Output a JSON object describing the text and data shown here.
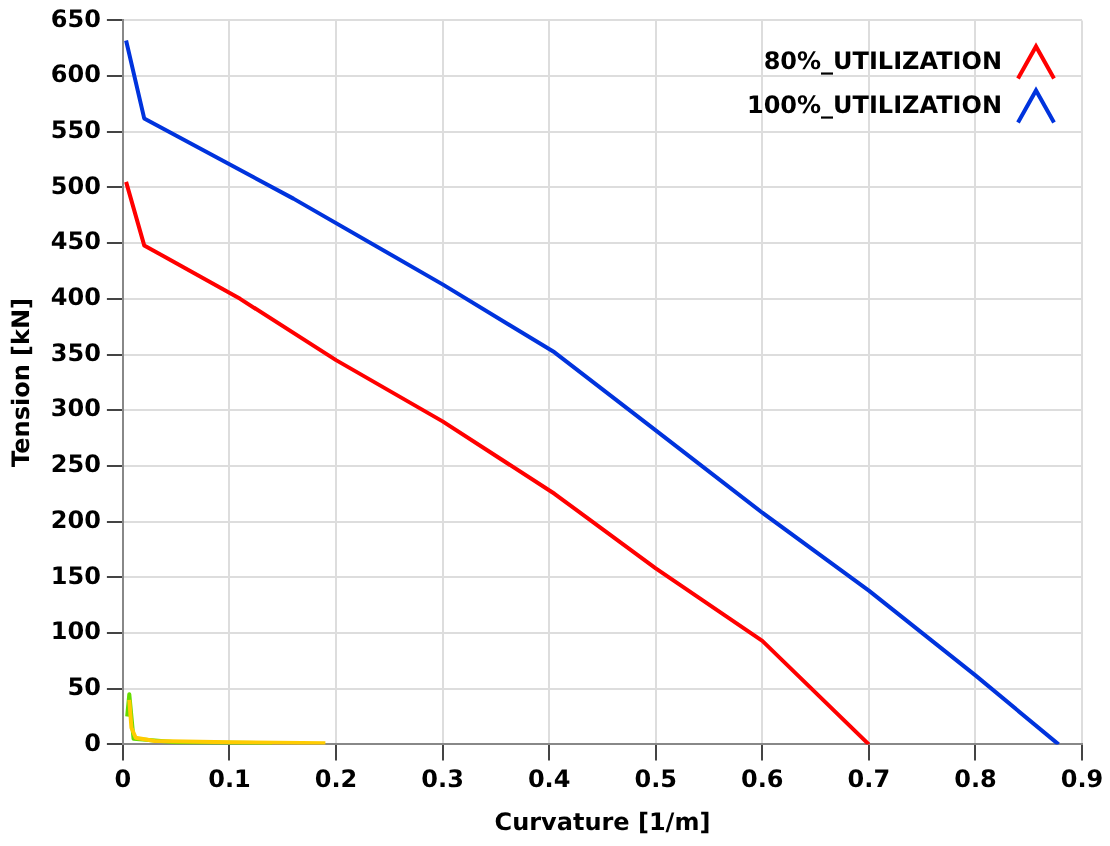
{
  "chart_data": {
    "type": "line",
    "xlabel": "Curvature [1/m]",
    "ylabel": "Tension [kN]",
    "xlim": [
      0,
      0.9
    ],
    "xticks": [
      0,
      0.1,
      0.2,
      0.3,
      0.4,
      0.5,
      0.6,
      0.7,
      0.8,
      0.9
    ],
    "ylim": [
      0,
      650
    ],
    "yticks": [
      0,
      50,
      100,
      150,
      200,
      250,
      300,
      350,
      400,
      450,
      500,
      550,
      600,
      650
    ],
    "grid": true,
    "legend": "top right",
    "marker": "none",
    "line_style": "solid",
    "series": [
      {
        "name": "80%_UTILIZATION",
        "color": "#ff0000",
        "x": [
          0.003,
          0.02,
          0.11,
          0.2,
          0.3,
          0.405,
          0.5,
          0.6,
          0.7
        ],
        "values": [
          505,
          448,
          400,
          345,
          290,
          225,
          158,
          93,
          0
        ]
      },
      {
        "name": "100%_UTILIZATION",
        "color": "#0033dd",
        "x": [
          0.003,
          0.02,
          0.16,
          0.3,
          0.405,
          0.5,
          0.6,
          0.7,
          0.8,
          0.878
        ],
        "values": [
          632,
          562,
          490,
          413,
          352,
          282,
          208,
          138,
          62,
          0
        ]
      },
      {
        "color": "#ffcc00",
        "x": [
          0.006,
          0.008,
          0.012,
          0.03,
          0.1,
          0.19
        ],
        "values": [
          40,
          15,
          6,
          3,
          2,
          1
        ]
      },
      {
        "color": "#66dd00",
        "x": [
          0.004,
          0.006,
          0.01,
          0.05,
          0.14
        ],
        "values": [
          25,
          45,
          5,
          2,
          1
        ]
      }
    ]
  }
}
